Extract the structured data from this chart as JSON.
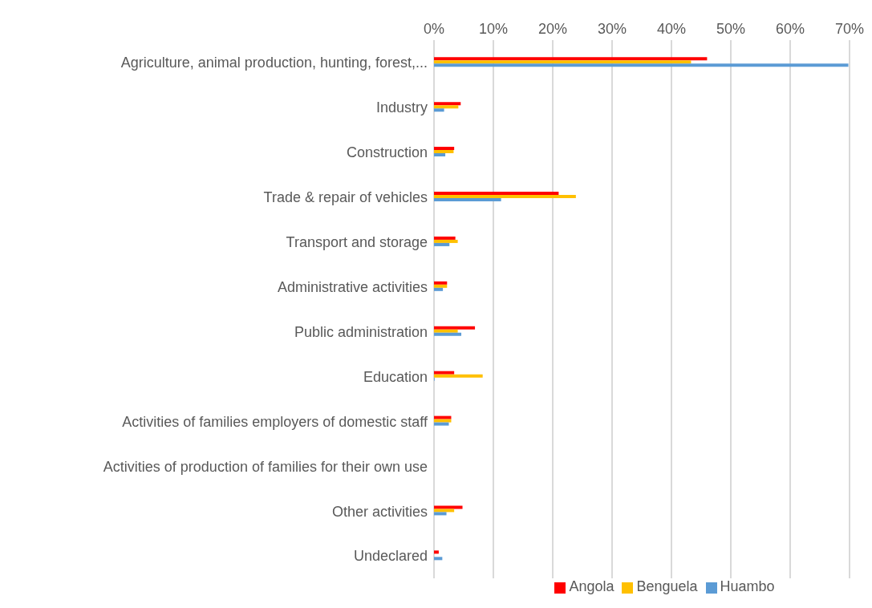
{
  "chart_data": {
    "type": "bar",
    "orientation": "horizontal",
    "categories": [
      "Agriculture, animal production, hunting, forest,...",
      "Industry",
      "Construction",
      "Trade & repair of vehicles",
      "Transport and storage",
      "Administrative activities",
      "Public administration",
      "Education",
      "Activities of families employers of domestic staff",
      "Activities of production of families for their own use",
      "Other activities",
      "Undeclared"
    ],
    "series": [
      {
        "name": "Angola",
        "color": "#ff0000",
        "values": [
          46.0,
          4.5,
          3.4,
          21.0,
          3.6,
          2.2,
          6.9,
          3.4,
          2.9,
          0,
          4.8,
          0.8
        ]
      },
      {
        "name": "Benguela",
        "color": "#ffc000",
        "values": [
          43.3,
          4.1,
          3.3,
          23.9,
          4.0,
          2.2,
          4.0,
          8.2,
          2.9,
          0,
          3.4,
          0
        ]
      },
      {
        "name": "Huambo",
        "color": "#5b9bd5",
        "values": [
          69.8,
          1.7,
          1.9,
          11.3,
          2.6,
          1.5,
          4.6,
          0.1,
          2.5,
          0,
          2.1,
          1.4
        ]
      }
    ],
    "xlim": [
      0,
      70
    ],
    "xticks": [
      {
        "value": 0,
        "label": "0%"
      },
      {
        "value": 10,
        "label": "10%"
      },
      {
        "value": 20,
        "label": "20%"
      },
      {
        "value": 30,
        "label": "30%"
      },
      {
        "value": 40,
        "label": "40%"
      },
      {
        "value": 50,
        "label": "50%"
      },
      {
        "value": 60,
        "label": "60%"
      },
      {
        "value": 70,
        "label": "70%"
      }
    ],
    "grid": "x",
    "legend": "bottom"
  }
}
